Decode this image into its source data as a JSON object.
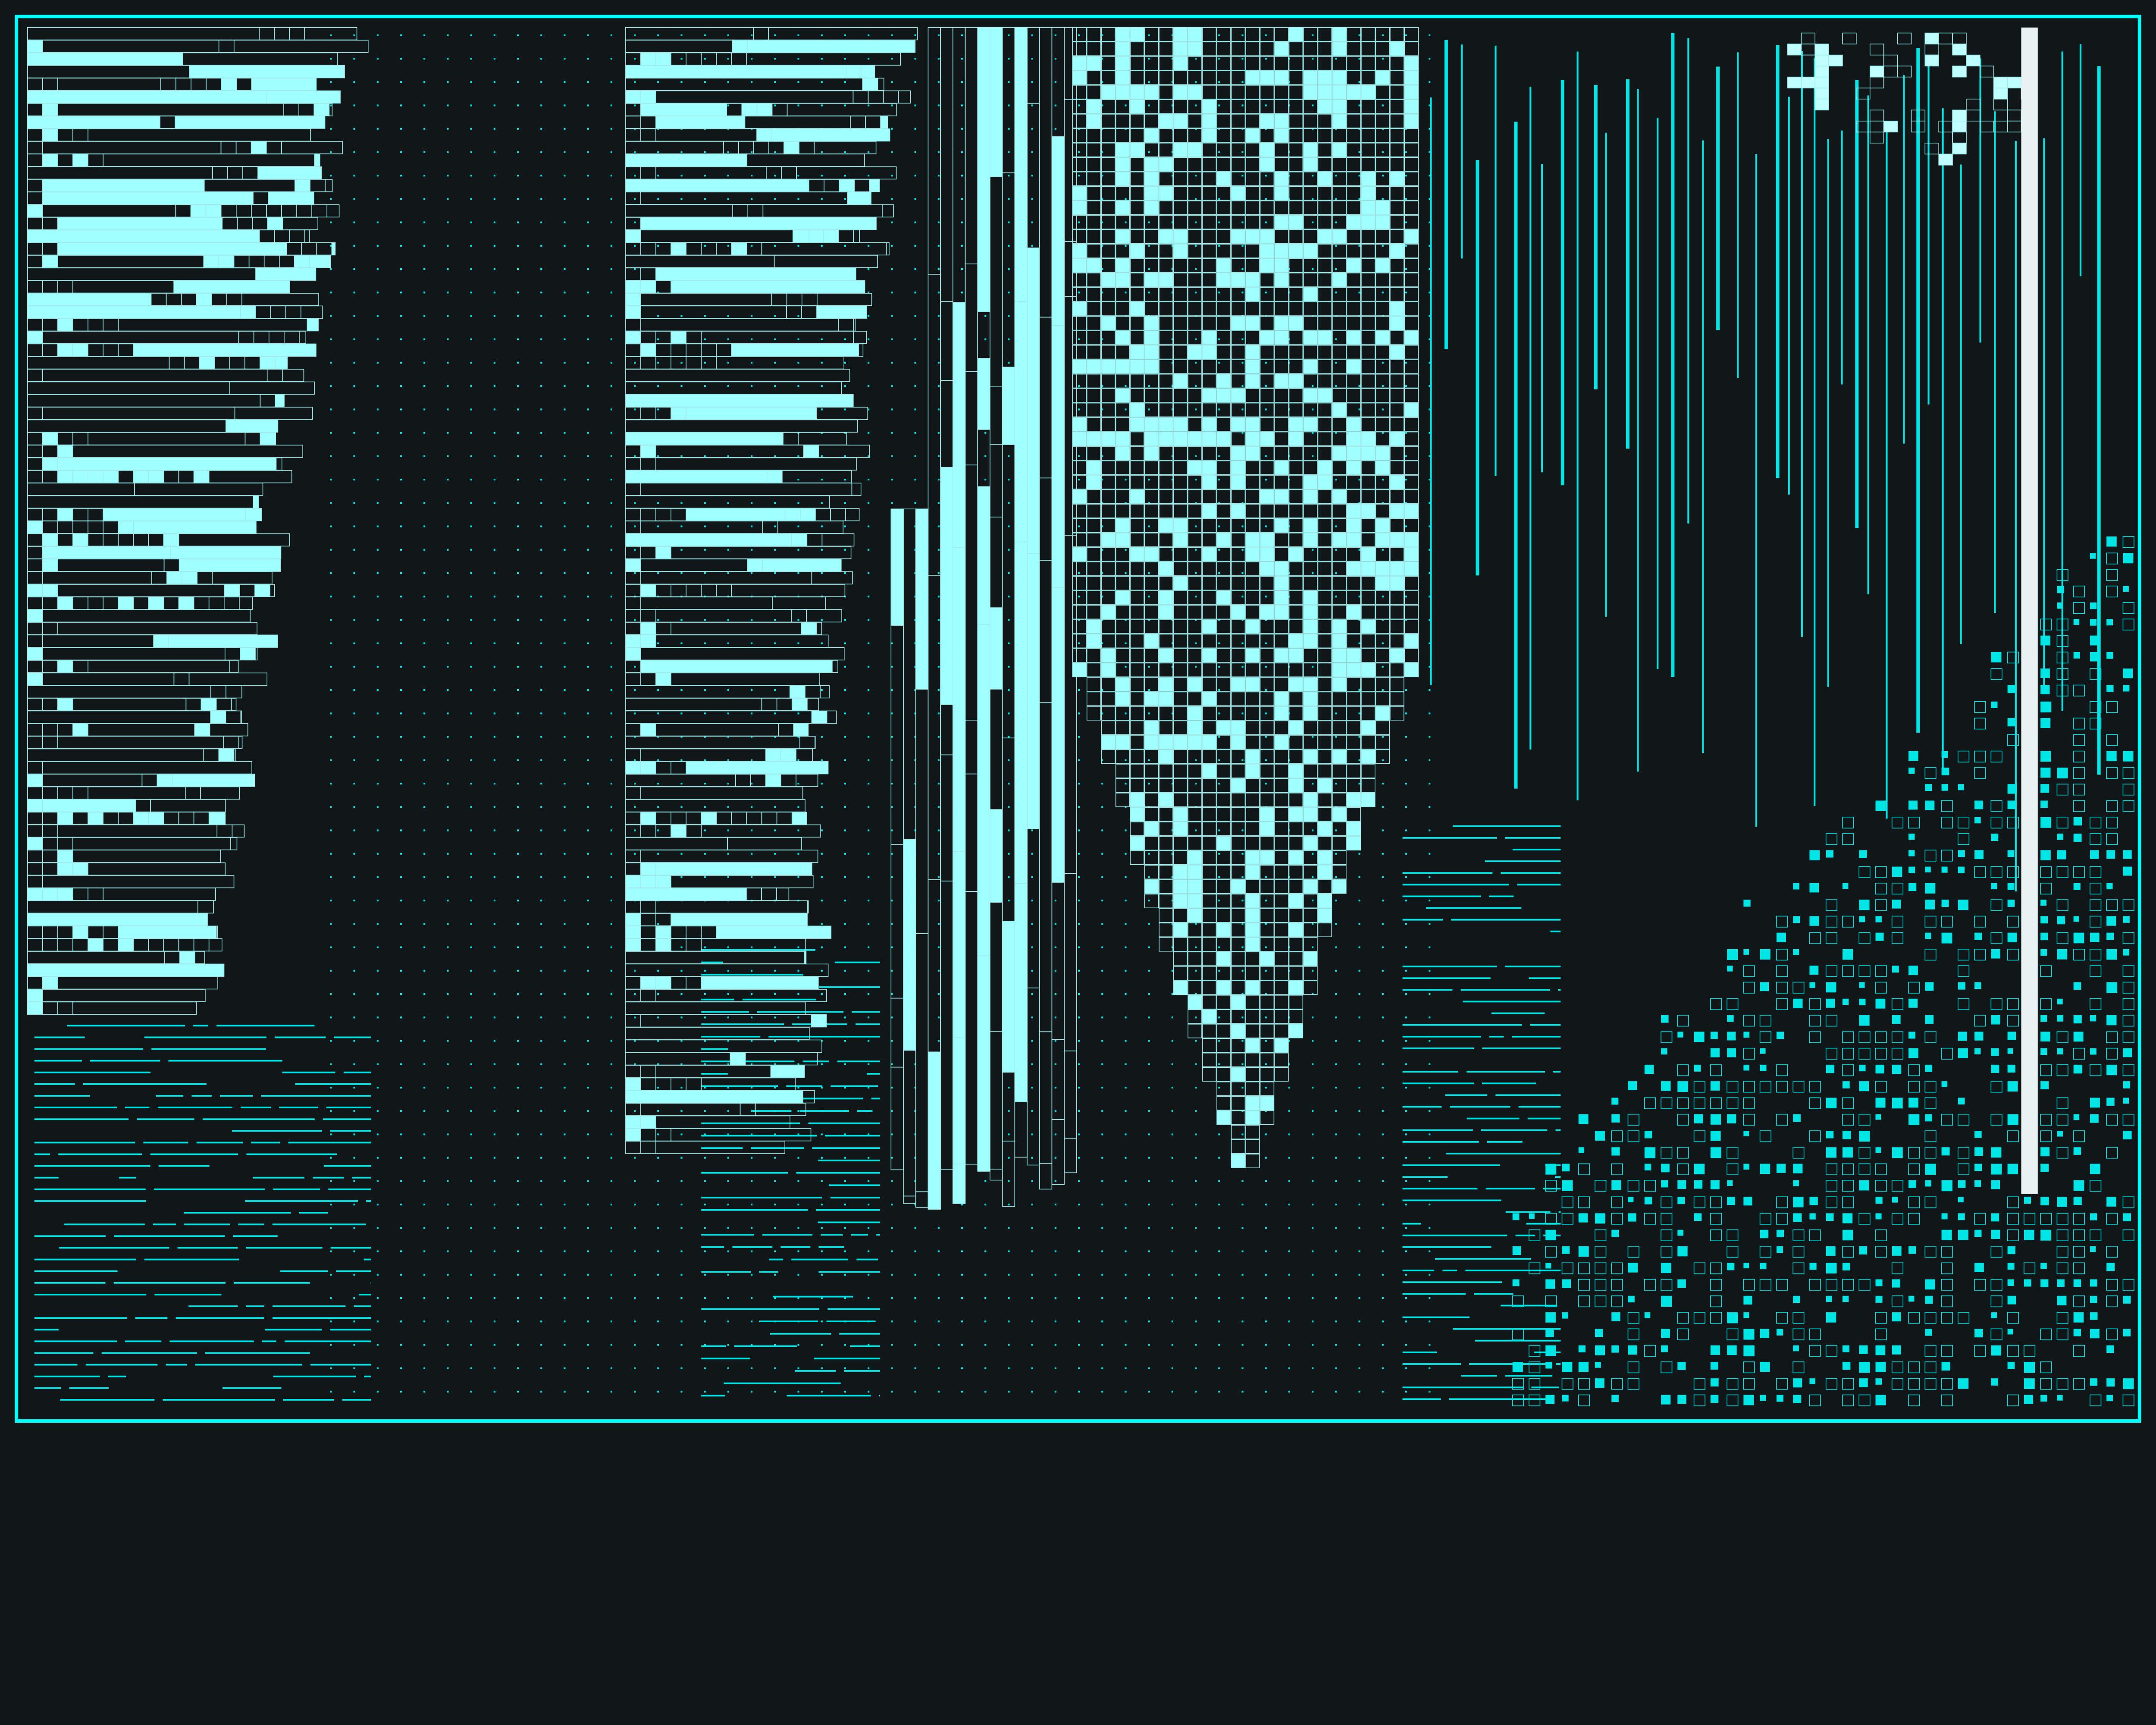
{
  "artwork": {
    "style": "generative-glitch-grid",
    "colors": {
      "background": "#111618",
      "frame": "#00ffff",
      "fill_light": "#a0ffff",
      "fill_pale": "#c0ffff",
      "accent": "#00e5e5",
      "outline": "#9fe9e9",
      "white_bar": "#e8f2f2"
    }
  }
}
